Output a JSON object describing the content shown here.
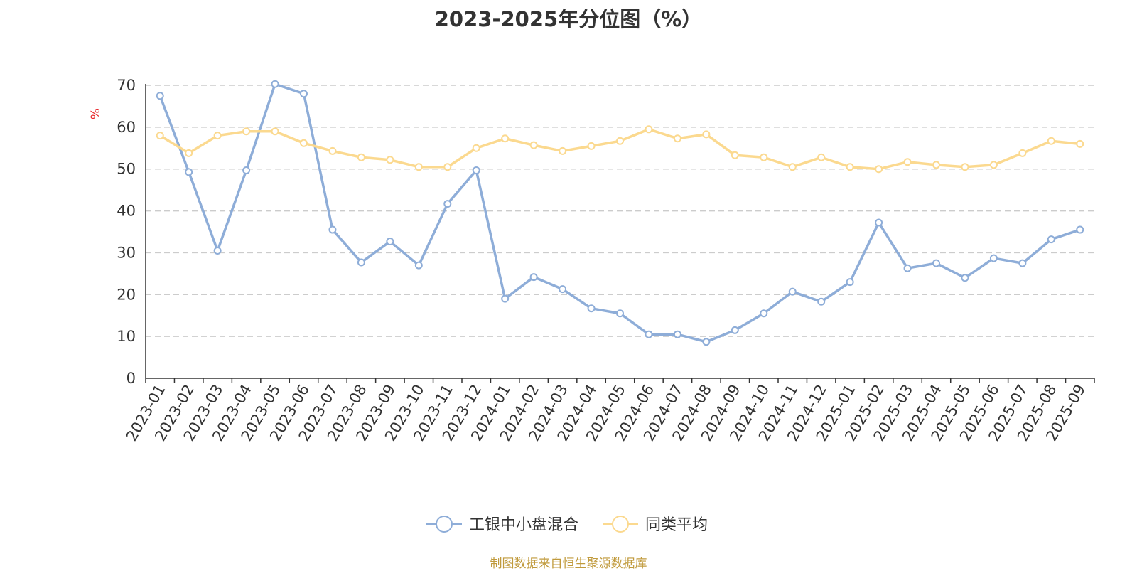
{
  "title": "2023-2025年分位图（%）",
  "source": "制图数据来自恒生聚源数据库",
  "chart_data": {
    "type": "line",
    "title": "2023-2025年分位图（%）",
    "ylabel": "%",
    "xlabel": "",
    "ylim": [
      0,
      70
    ],
    "yticks": [
      0,
      10,
      20,
      30,
      40,
      50,
      60,
      70
    ],
    "grid": true,
    "legend_position": "bottom",
    "categories": [
      "2023-01",
      "2023-02",
      "2023-03",
      "2023-04",
      "2023-05",
      "2023-06",
      "2023-07",
      "2023-08",
      "2023-09",
      "2023-10",
      "2023-11",
      "2023-12",
      "2024-01",
      "2024-02",
      "2024-03",
      "2024-04",
      "2024-05",
      "2024-06",
      "2024-07",
      "2024-08",
      "2024-09",
      "2024-10",
      "2024-11",
      "2024-12",
      "2025-01",
      "2025-02",
      "2025-03",
      "2025-04",
      "2025-05",
      "2025-06",
      "2025-07",
      "2025-08",
      "2025-09"
    ],
    "series": [
      {
        "name": "工银中小盘混合",
        "color": "#8eadd8",
        "values": [
          67.5,
          49.3,
          30.5,
          49.7,
          70.3,
          68.0,
          35.5,
          27.7,
          32.7,
          27.0,
          41.7,
          49.7,
          19.0,
          24.2,
          21.3,
          16.7,
          15.5,
          10.5,
          10.5,
          8.7,
          11.5,
          15.5,
          20.7,
          18.3,
          23.0,
          37.2,
          26.3,
          27.5,
          24.0,
          28.7,
          27.5,
          33.2,
          35.5
        ]
      },
      {
        "name": "同类平均",
        "color": "#fbd98f",
        "values": [
          58.0,
          53.8,
          58.0,
          59.0,
          59.0,
          56.2,
          54.3,
          52.8,
          52.2,
          50.5,
          50.5,
          55.0,
          57.3,
          55.7,
          54.3,
          55.5,
          56.7,
          59.5,
          57.3,
          58.3,
          53.3,
          52.8,
          50.5,
          52.8,
          50.5,
          50.0,
          51.7,
          51.0,
          50.5,
          51.0,
          53.8,
          56.7,
          56.0
        ]
      }
    ]
  }
}
